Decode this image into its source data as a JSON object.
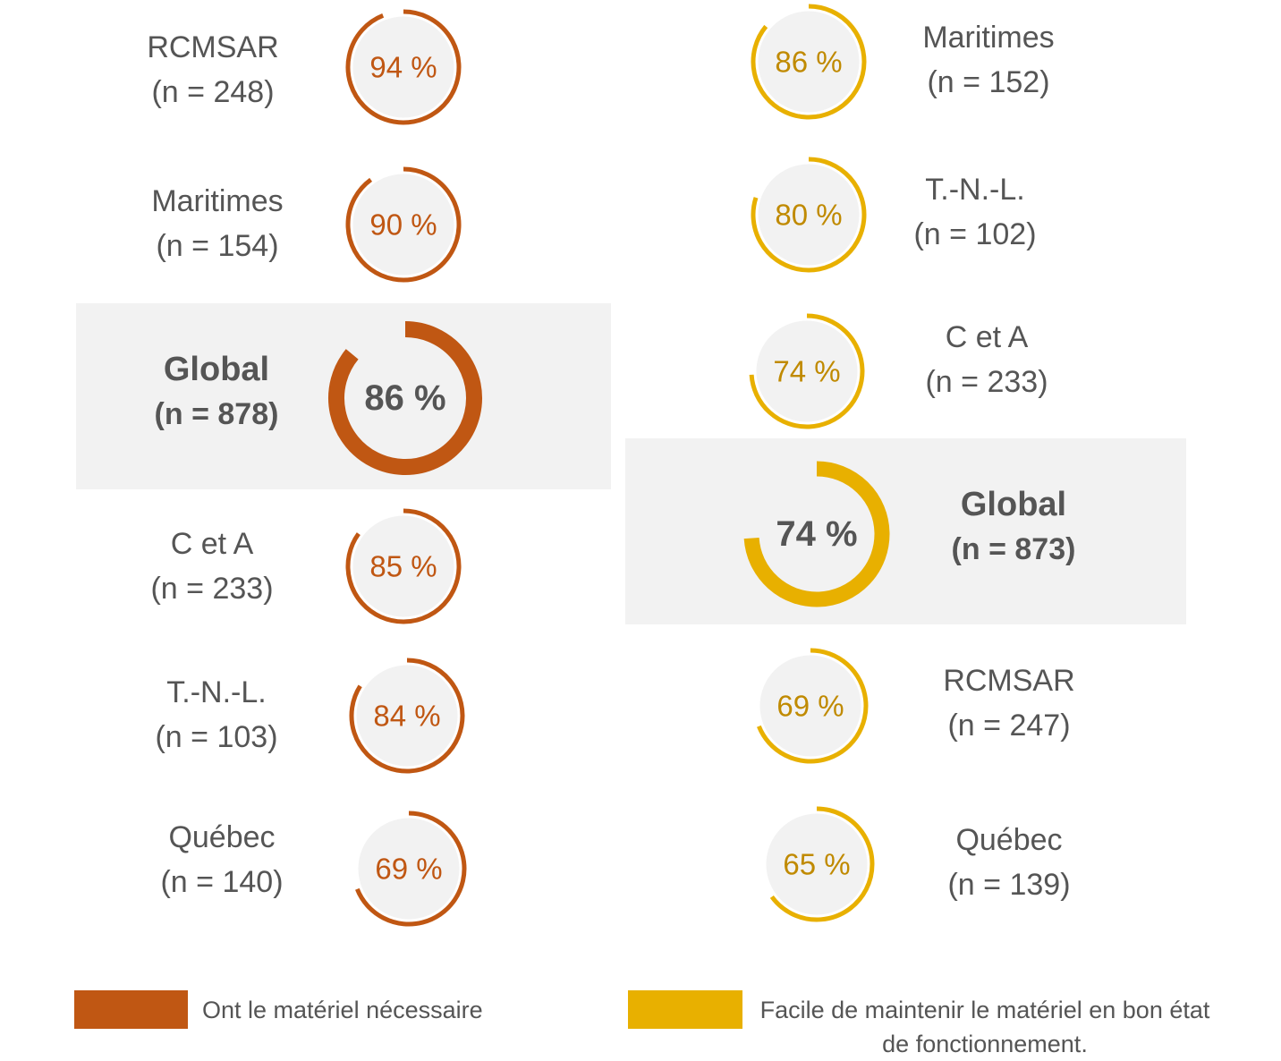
{
  "chart_data": {
    "type": "donut",
    "series": [
      {
        "name": "Ont le matériel nécessaire",
        "color": "#c05713",
        "items": [
          {
            "name": "RCMSAR",
            "n": "(n = 248)",
            "value": 94,
            "label": "94 %"
          },
          {
            "name": "Maritimes",
            "n": "(n = 154)",
            "value": 90,
            "label": "90 %"
          },
          {
            "name": "Global",
            "n": "(n = 878)",
            "value": 86,
            "label": "86 %",
            "overall": true
          },
          {
            "name": "C et A",
            "n": "(n = 233)",
            "value": 85,
            "label": "85 %"
          },
          {
            "name": "T.-N.-L.",
            "n": "(n = 103)",
            "value": 84,
            "label": "84 %"
          },
          {
            "name": "Québec",
            "n": "(n = 140)",
            "value": 69,
            "label": "69 %"
          }
        ]
      },
      {
        "name": "Facile de maintenir le matériel en bon état de fonctionnement.",
        "color": "#e8b000",
        "items": [
          {
            "name": "Maritimes",
            "n": "(n = 152)",
            "value": 86,
            "label": "86 %"
          },
          {
            "name": "T.-N.-L.",
            "n": "(n = 102)",
            "value": 80,
            "label": "80 %"
          },
          {
            "name": "C et A",
            "n": "(n = 233)",
            "value": 74,
            "label": "74 %"
          },
          {
            "name": "Global",
            "n": "(n = 873)",
            "value": 74,
            "label": "74 %",
            "overall": true
          },
          {
            "name": "RCMSAR",
            "n": "(n = 247)",
            "value": 69,
            "label": "69 %"
          },
          {
            "name": "Québec",
            "n": "(n = 139)",
            "value": 65,
            "label": "65 %"
          }
        ]
      }
    ],
    "legend": {
      "placement": "bottom",
      "items": [
        {
          "label": "Ont le matériel nécessaire",
          "color": "#c05713"
        },
        {
          "label": "Facile de maintenir le matériel en bon état de fonctionnement.",
          "color": "#e8b000"
        }
      ]
    },
    "colors": {
      "track": "#f2f2f2",
      "highlight": "#f2f2f2",
      "text": "#555555",
      "series_a_text": "#c05713",
      "series_b_text": "#c08a00"
    }
  }
}
